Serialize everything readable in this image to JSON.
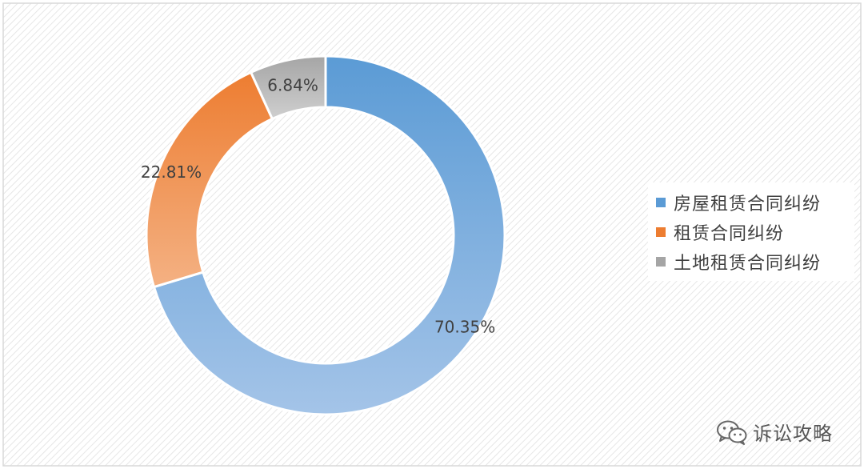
{
  "chart_data": {
    "type": "pie",
    "variant": "donut",
    "title": "",
    "categories": [
      "房屋租赁合同纠纷",
      "租赁合同纠纷",
      "土地租赁合同纠纷"
    ],
    "values": [
      70.35,
      22.81,
      6.84
    ],
    "data_labels": [
      "70.35%",
      "22.81%",
      "6.84%"
    ],
    "colors": [
      "#5b9bd5",
      "#ed7d31",
      "#a5a5a5"
    ],
    "legend_position": "right",
    "start_angle": "12 o'clock, clockwise"
  },
  "watermark": {
    "icon": "wechat-icon",
    "text": "诉讼攻略"
  }
}
